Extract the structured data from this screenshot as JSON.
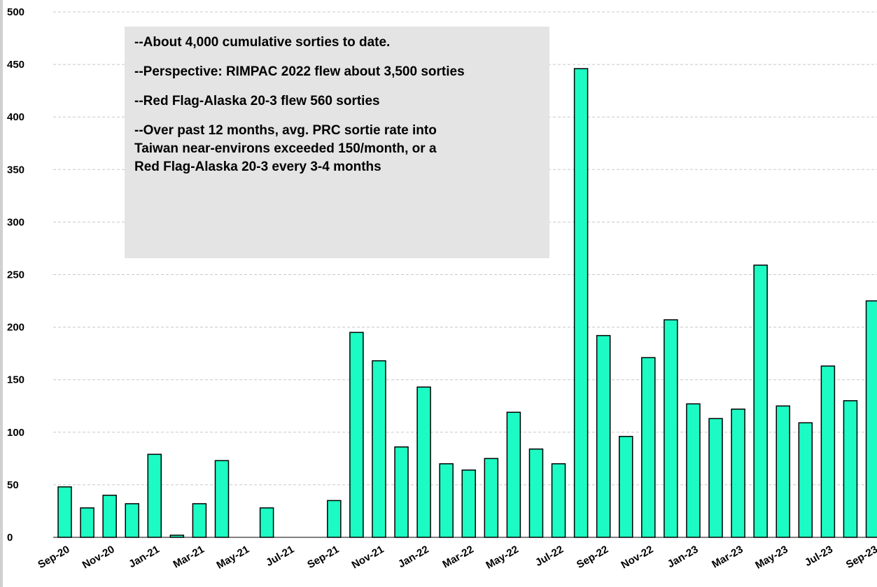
{
  "chart_data": {
    "type": "bar",
    "title": "",
    "xlabel": "",
    "ylabel": "",
    "ylim": [
      0,
      500
    ],
    "yticks": [
      0,
      50,
      100,
      150,
      200,
      250,
      300,
      350,
      400,
      450,
      500
    ],
    "grid": true,
    "categories": [
      "Sep-20",
      "Oct-20",
      "Nov-20",
      "Dec-20",
      "Jan-21",
      "Feb-21",
      "Mar-21",
      "Apr-21",
      "May-21",
      "Jun-21",
      "Jul-21",
      "Aug-21",
      "Sep-21",
      "Oct-21",
      "Nov-21",
      "Dec-21",
      "Jan-22",
      "Feb-22",
      "Mar-22",
      "Apr-22",
      "May-22",
      "Jun-22",
      "Jul-22",
      "Aug-22",
      "Sep-22",
      "Oct-22",
      "Nov-22",
      "Dec-22",
      "Jan-23",
      "Feb-23",
      "Mar-23",
      "Apr-23",
      "May-23",
      "Jun-23",
      "Jul-23",
      "Aug-23",
      "Sep-23"
    ],
    "values": [
      48,
      28,
      40,
      32,
      79,
      2,
      32,
      73,
      0,
      28,
      0,
      0,
      35,
      195,
      168,
      86,
      143,
      70,
      64,
      75,
      119,
      84,
      70,
      446,
      192,
      96,
      171,
      207,
      127,
      113,
      122,
      259,
      125,
      109,
      163,
      130,
      225
    ],
    "xtick_labels": [
      "Sep-20",
      "Nov-20",
      "Jan-21",
      "Mar-21",
      "May-21",
      "Jul-21",
      "Sep-21",
      "Nov-21",
      "Jan-22",
      "Mar-22",
      "May-22",
      "Jul-22",
      "Sep-22",
      "Nov-22",
      "Jan-23",
      "Mar-23",
      "May-23",
      "Jul-23",
      "Sep-23"
    ],
    "bar_color": "#1dfbc4",
    "annotations": [
      "--About 4,000 cumulative sorties to date.",
      "--Perspective: RIMPAC 2022 flew about 3,500 sorties",
      "--Red Flag-Alaska 20-3 flew 560 sorties",
      "--Over past 12 months, avg. PRC sortie rate into\nTaiwan near-environs exceeded 150/month, or a\nRed Flag-Alaska 20-3 every 3-4 months"
    ]
  }
}
